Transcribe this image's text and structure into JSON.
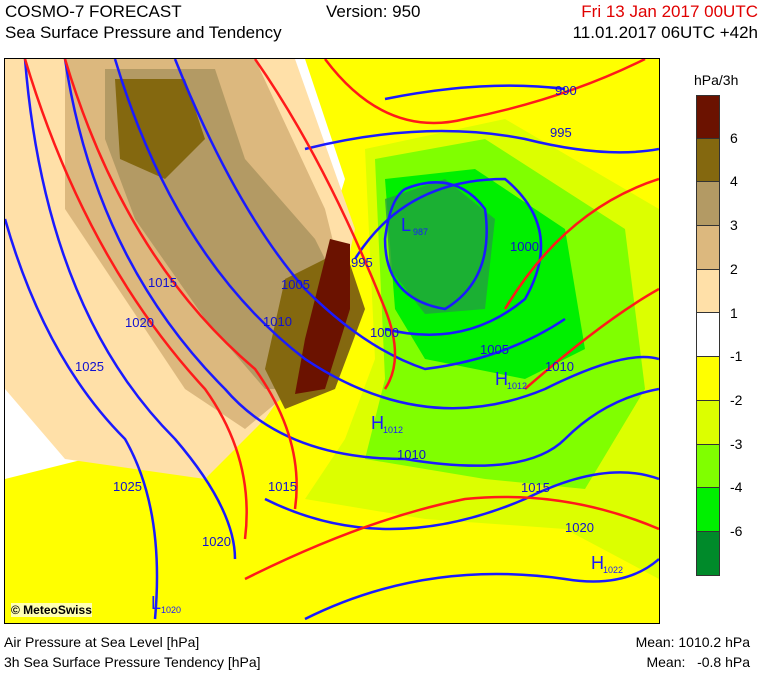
{
  "header": {
    "title": "COSMO-7 FORECAST",
    "subtitle": "Sea Surface Pressure and Tendency",
    "version": "Version: 950",
    "valid_time": "Fri 13 Jan 2017 00UTC",
    "run_time": "11.01.2017 06UTC +42h",
    "valid_time_color": "#e00000"
  },
  "map": {
    "copyright": "© MeteoSwiss",
    "isobar_labels": [
      "990",
      "995",
      "995",
      "1000",
      "1000",
      "1005",
      "1005",
      "1010",
      "1010",
      "1010",
      "1015",
      "1015",
      "1015",
      "1020",
      "1020",
      "1020",
      "1025",
      "1025"
    ],
    "pressure_centers": [
      {
        "type": "L",
        "value": "987"
      },
      {
        "type": "H",
        "value": "1012"
      },
      {
        "type": "H",
        "value": "1012"
      },
      {
        "type": "H",
        "value": "1022"
      },
      {
        "type": "L",
        "value": "1020"
      }
    ],
    "isobar_color": "#1a1aff",
    "tendency_line_color": "#ff1a1a"
  },
  "legend": {
    "unit": "hPa/3h",
    "ticks": [
      "6",
      "4",
      "3",
      "2",
      "1",
      "-1",
      "-2",
      "-3",
      "-4",
      "-6"
    ],
    "colors": [
      "#6b1200",
      "#84680f",
      "#b39a64",
      "#dcb87e",
      "#ffe0a8",
      "#ffffff",
      "#ffff00",
      "#dcff00",
      "#80ff00",
      "#00f000",
      "#008a2a"
    ]
  },
  "footer": {
    "field1": "Air Pressure at Sea Level [hPa]",
    "field2": "3h Sea Surface Pressure Tendency [hPa]",
    "mean1": "Mean: 1010.2 hPa",
    "mean2": "Mean:   -0.8 hPa"
  }
}
